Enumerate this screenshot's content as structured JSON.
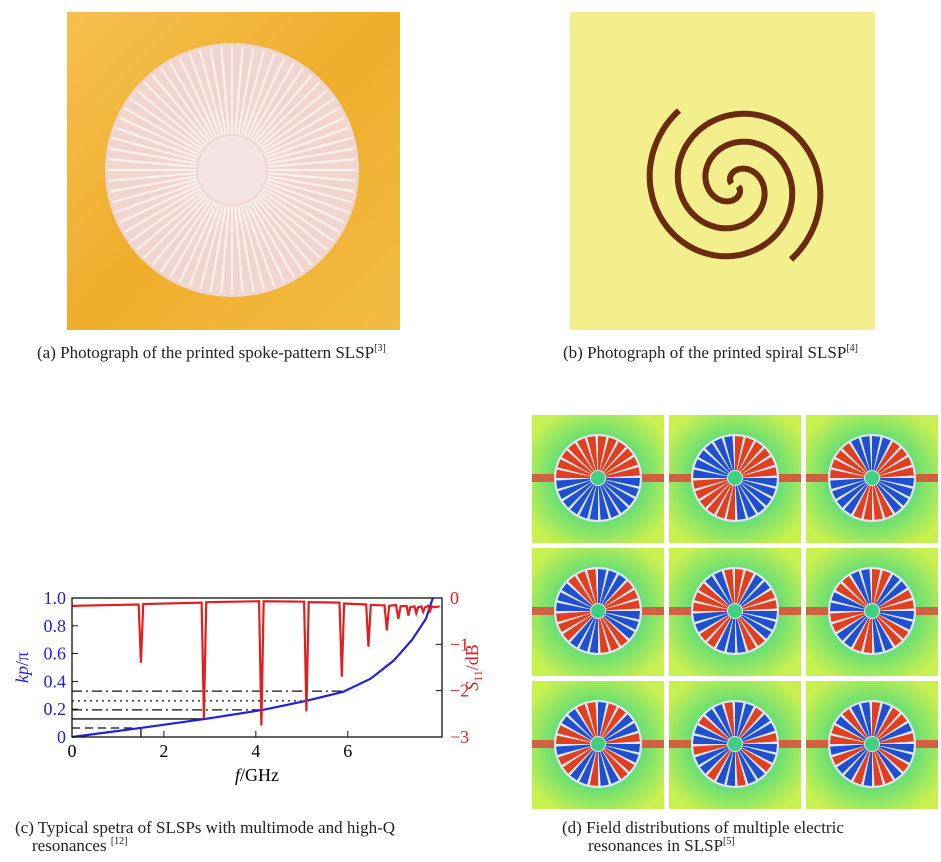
{
  "panels": [
    {
      "caption": "(a) Photograph of the printed spoke-pattern SLSP",
      "ref": "[3]"
    },
    {
      "caption": "(b) Photograph of the printed spiral SLSP",
      "ref": "[4]"
    },
    {
      "caption": "(c) Typical spetra of SLSPs with multimode and high-Q",
      "caption2": "resonances ",
      "ref": "[12]"
    },
    {
      "caption": "(d) Field distributions of multiple electric",
      "caption2": "resonances in SLSP",
      "ref": "[5]"
    }
  ],
  "chart_data": {
    "type": "line",
    "xlabel": {
      "italic": "f",
      "rest": "/GHz"
    },
    "ylabel": {
      "italic": "kp",
      "rest": "/π"
    },
    "y2label": {
      "italic": "S",
      "sub": "11",
      "rest": "/dB"
    },
    "xlim": [
      0,
      8.05
    ],
    "xticks": [
      0,
      2,
      4,
      6
    ],
    "ylim": [
      0,
      1
    ],
    "yticks": [
      0,
      0.2,
      0.4,
      0.6,
      0.8,
      {
        "value": 1,
        "label": "1.0"
      }
    ],
    "y2lim": [
      -3,
      0
    ],
    "y2ticks": [
      {
        "value": -3,
        "label": "−3"
      },
      {
        "value": -2,
        "label": "−2"
      },
      {
        "value": -1,
        "label": "−1"
      },
      0
    ],
    "ycolor": "#2020e0",
    "y2color": "#e02020",
    "series": [
      {
        "color": "#2020e0",
        "x": [
          0,
          1.5,
          2.9,
          4.15,
          5.1,
          5.9,
          6.5,
          7,
          7.4,
          7.7,
          7.85
        ],
        "values": [
          0,
          0.065,
          0.13,
          0.195,
          0.26,
          0.325,
          0.42,
          0.55,
          0.7,
          0.85,
          1.0
        ]
      },
      {
        "color": "#e02020",
        "axis": "y2",
        "x": [
          0,
          1.45,
          1.5,
          1.55,
          2.82,
          2.87,
          2.92,
          4.07,
          4.12,
          4.17,
          5.05,
          5.1,
          5.15,
          5.82,
          5.87,
          5.92,
          6.4,
          6.45,
          6.5,
          6.8,
          6.85,
          6.9,
          7.05,
          7.1,
          7.15,
          7.28,
          7.32,
          7.36,
          7.45,
          7.49,
          7.53,
          7.6,
          7.64,
          7.68,
          7.75,
          7.79,
          7.83,
          7.9,
          8.0
        ],
        "values": [
          -0.17,
          -0.14,
          -1.4,
          -0.13,
          -0.1,
          -2.6,
          -0.09,
          -0.07,
          -2.75,
          -0.07,
          -0.08,
          -2.45,
          -0.09,
          -0.1,
          -1.7,
          -0.12,
          -0.14,
          -1.05,
          -0.15,
          -0.16,
          -0.7,
          -0.17,
          -0.15,
          -0.45,
          -0.18,
          -0.17,
          -0.38,
          -0.2,
          -0.18,
          -0.33,
          -0.2,
          -0.18,
          -0.3,
          -0.2,
          -0.17,
          -0.28,
          -0.18,
          -0.2,
          -0.18
        ]
      }
    ],
    "guides": [
      {
        "f": 1.5,
        "kp": 0.065,
        "style": "dashed"
      },
      {
        "f": 2.87,
        "kp": 0.13,
        "style": "solid"
      },
      {
        "f": 4.12,
        "kp": 0.195,
        "style": "dashdot"
      },
      {
        "f": 5.1,
        "kp": 0.26,
        "style": "dotted"
      },
      {
        "f": 5.87,
        "kp": 0.33,
        "style": "dashdot"
      }
    ]
  }
}
